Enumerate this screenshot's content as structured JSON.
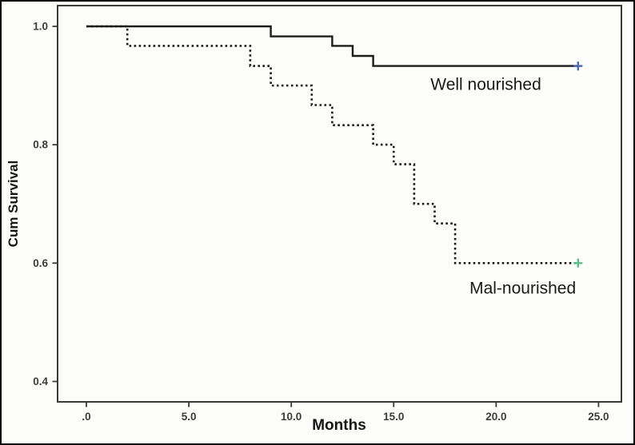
{
  "figure": {
    "kind": "Kaplan-Meier cumulative survival plot",
    "background_color": "#fcfcfa",
    "outer_border_color": "#0a0a0a",
    "frame_color": "#3a3a3a"
  },
  "chart_data": {
    "type": "line",
    "subtype": "kaplan_meier_step",
    "title": "",
    "xlabel": "Months",
    "ylabel": "Cum Survival",
    "grid": false,
    "legend_position": "in-plot text annotations",
    "xlim": [
      -1.4,
      26.1
    ],
    "ylim": [
      0.365,
      1.035
    ],
    "xticks": [
      0,
      5,
      10,
      15,
      20,
      25
    ],
    "xtick_labels": [
      ".0",
      "5.0",
      "10.0",
      "15.0",
      "20.0",
      "25.0"
    ],
    "yticks": [
      1.0,
      0.8,
      0.6,
      0.4
    ],
    "ytick_labels": [
      "1.0",
      "0.8",
      "0.6",
      "0.4"
    ],
    "series": [
      {
        "name": "Well nourished",
        "line_style": "solid",
        "color": "#1c1c1c",
        "steps": [
          [
            0,
            1.0
          ],
          [
            9,
            0.983
          ],
          [
            12,
            0.967
          ],
          [
            13,
            0.95
          ],
          [
            14,
            0.933
          ]
        ],
        "end_month": 24,
        "final_survival": 0.933,
        "censor": {
          "month": 24,
          "survival": 0.933,
          "marker": "+",
          "color": "#4e6aae"
        },
        "label": "Well nourished",
        "label_at": {
          "month": 19.5,
          "survival": 0.902
        }
      },
      {
        "name": "Mal-nourished",
        "line_style": "dotted",
        "color": "#1c1c1c",
        "steps": [
          [
            0,
            1.0
          ],
          [
            2,
            0.967
          ],
          [
            8,
            0.933
          ],
          [
            9,
            0.9
          ],
          [
            11,
            0.867
          ],
          [
            12,
            0.833
          ],
          [
            14,
            0.8
          ],
          [
            15,
            0.767
          ],
          [
            16,
            0.7
          ],
          [
            17,
            0.667
          ],
          [
            18,
            0.6
          ]
        ],
        "end_month": 24,
        "final_survival": 0.6,
        "censor": {
          "month": 24,
          "survival": 0.6,
          "marker": "+",
          "color": "#5ebd86"
        },
        "label": "Mal-nourished",
        "label_at": {
          "month": 21.3,
          "survival": 0.558
        }
      }
    ]
  }
}
